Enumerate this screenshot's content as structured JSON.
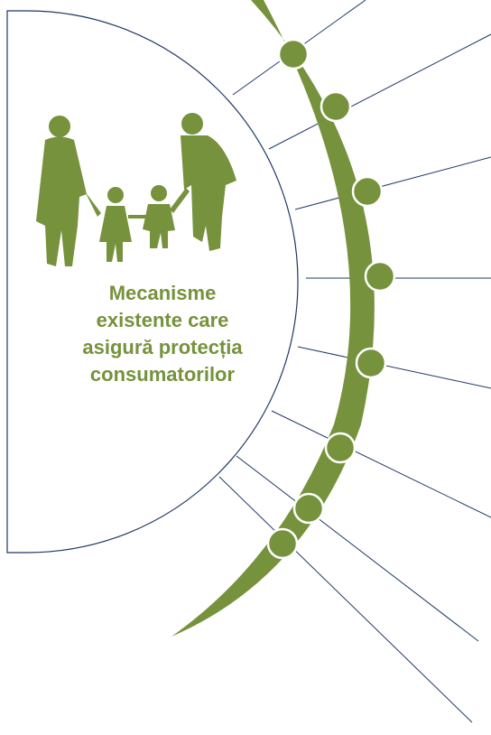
{
  "diagram": {
    "title_lines": [
      "Mecanisme",
      "existente care",
      "asigură protecția",
      "consumatorilor"
    ]
  }
}
